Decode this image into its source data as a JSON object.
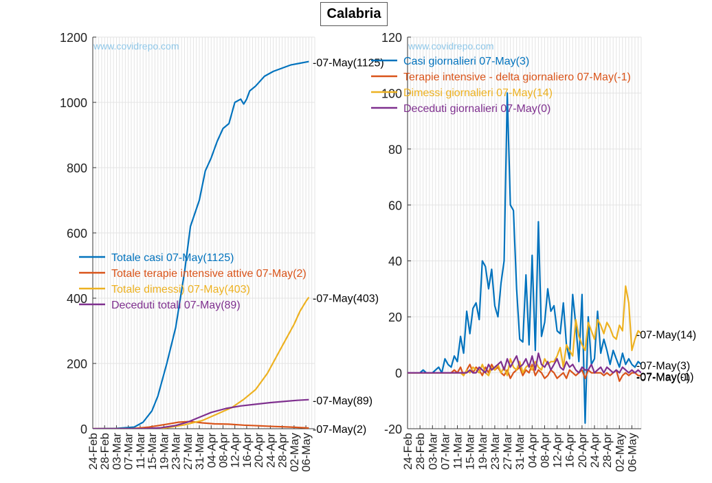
{
  "title": "Calabria",
  "watermark": "www.covidrepo.com",
  "colors": {
    "blue": "#0072BD",
    "orange": "#D95319",
    "yellow": "#EDB120",
    "purple": "#7E2F8E",
    "watermark": "#8fc7e8",
    "grid": "#e3e3e3"
  },
  "chart_data": [
    {
      "type": "line",
      "panel": "left",
      "ylim": [
        0,
        1200
      ],
      "yticks": [
        0,
        200,
        400,
        600,
        800,
        1000,
        1200
      ],
      "xlim": [
        "2020-02-24",
        "2020-05-09"
      ],
      "xtick_labels": [
        "24-Feb",
        "28-Feb",
        "03-Mar",
        "07-Mar",
        "11-Mar",
        "15-Mar",
        "19-Mar",
        "23-Mar",
        "27-Mar",
        "31-Mar",
        "04-Apr",
        "08-Apr",
        "12-Apr",
        "16-Apr",
        "20-Apr",
        "24-Apr",
        "28-Apr",
        "02-May",
        "06-May"
      ],
      "legend_position": "center-left",
      "series": [
        {
          "name": "Totale casi 07-May(1125)",
          "end_label": "-07-May(1125)",
          "color": "#0072BD",
          "x": [
            "2020-02-24",
            "2020-03-03",
            "2020-03-09",
            "2020-03-12",
            "2020-03-15",
            "2020-03-17",
            "2020-03-20",
            "2020-03-23",
            "2020-03-26",
            "2020-03-28",
            "2020-03-31",
            "2020-04-02",
            "2020-04-04",
            "2020-04-06",
            "2020-04-08",
            "2020-04-10",
            "2020-04-12",
            "2020-04-14",
            "2020-04-15",
            "2020-04-16",
            "2020-04-17",
            "2020-04-19",
            "2020-04-22",
            "2020-04-25",
            "2020-04-28",
            "2020-05-01",
            "2020-05-04",
            "2020-05-07"
          ],
          "y": [
            0,
            1,
            5,
            20,
            55,
            100,
            200,
            310,
            480,
            620,
            700,
            790,
            830,
            880,
            920,
            935,
            1000,
            1010,
            995,
            1010,
            1035,
            1050,
            1080,
            1095,
            1105,
            1115,
            1120,
            1125
          ]
        },
        {
          "name": "Totale terapie intensive attive 07-May(2)",
          "end_label": "-07-May(2)",
          "color": "#D95319",
          "x": [
            "2020-02-24",
            "2020-03-08",
            "2020-03-14",
            "2020-03-20",
            "2020-03-24",
            "2020-03-28",
            "2020-04-01",
            "2020-04-05",
            "2020-04-10",
            "2020-04-15",
            "2020-04-20",
            "2020-04-25",
            "2020-05-01",
            "2020-05-07"
          ],
          "y": [
            0,
            0,
            5,
            14,
            20,
            22,
            18,
            15,
            14,
            11,
            9,
            7,
            5,
            2
          ]
        },
        {
          "name": "Totale dimessi) 07-May(403)",
          "end_label": "-07-May(403)",
          "color": "#EDB120",
          "x": [
            "2020-02-24",
            "2020-03-14",
            "2020-03-20",
            "2020-03-26",
            "2020-04-01",
            "2020-04-06",
            "2020-04-11",
            "2020-04-15",
            "2020-04-19",
            "2020-04-23",
            "2020-04-26",
            "2020-04-29",
            "2020-05-02",
            "2020-05-04",
            "2020-05-06",
            "2020-05-07"
          ],
          "y": [
            0,
            0,
            3,
            12,
            25,
            45,
            65,
            90,
            120,
            170,
            220,
            270,
            320,
            360,
            390,
            403
          ]
        },
        {
          "name": "Deceduti totali 07-May(89)",
          "end_label": "-07-May(89)",
          "color": "#7E2F8E",
          "x": [
            "2020-02-24",
            "2020-03-12",
            "2020-03-18",
            "2020-03-23",
            "2020-03-27",
            "2020-03-31",
            "2020-04-04",
            "2020-04-09",
            "2020-04-14",
            "2020-04-19",
            "2020-04-24",
            "2020-04-29",
            "2020-05-03",
            "2020-05-07"
          ],
          "y": [
            0,
            0,
            3,
            10,
            20,
            35,
            50,
            62,
            70,
            75,
            80,
            84,
            87,
            89
          ]
        }
      ]
    },
    {
      "type": "line",
      "panel": "right",
      "ylim": [
        -20,
        120
      ],
      "yticks": [
        -20,
        0,
        20,
        40,
        60,
        80,
        100,
        120
      ],
      "xlim": [
        "2020-02-24",
        "2020-05-09"
      ],
      "xtick_labels": [
        "24-Feb",
        "28-Feb",
        "03-Mar",
        "07-Mar",
        "11-Mar",
        "15-Mar",
        "19-Mar",
        "23-Mar",
        "27-Mar",
        "31-Mar",
        "04-Apr",
        "08-Apr",
        "12-Apr",
        "16-Apr",
        "20-Apr",
        "24-Apr",
        "28-Apr",
        "02-May",
        "06-May"
      ],
      "legend_position": "top-right",
      "series": [
        {
          "name": "Casi giornalieri 07-May(3)",
          "end_label": "-07-May(3)",
          "color": "#0072BD",
          "y": [
            0,
            0,
            0,
            0,
            0,
            1,
            0,
            0,
            0,
            1,
            2,
            0,
            5,
            3,
            2,
            6,
            4,
            13,
            7,
            22,
            14,
            23,
            25,
            19,
            40,
            38,
            30,
            37,
            24,
            20,
            32,
            40,
            100,
            60,
            58,
            30,
            12,
            11,
            35,
            10,
            42,
            8,
            54,
            13,
            18,
            30,
            22,
            24,
            15,
            14,
            25,
            10,
            5,
            28,
            17,
            4,
            28,
            -18,
            20,
            3,
            5,
            22,
            7,
            12,
            8,
            3,
            8,
            5,
            2,
            7,
            3,
            5,
            3,
            2,
            4,
            3
          ]
        },
        {
          "name": "Terapie intensive - delta giornaliero 07-May(-1)",
          "end_label": "-07-May(-1)",
          "color": "#D95319",
          "y": [
            0,
            0,
            0,
            0,
            0,
            0,
            0,
            0,
            0,
            0,
            0,
            0,
            0,
            0,
            0,
            1,
            0,
            2,
            -1,
            1,
            3,
            0,
            2,
            1,
            -1,
            2,
            0,
            3,
            1,
            2,
            0,
            -1,
            1,
            -2,
            0,
            1,
            2,
            -1,
            1,
            0,
            3,
            -1,
            1,
            0,
            -2,
            -1,
            1,
            0,
            -2,
            -1,
            0,
            -2,
            1,
            0,
            -1,
            0,
            1,
            -2,
            1,
            0,
            0,
            0,
            0,
            -1,
            0,
            -1,
            0,
            1,
            -3,
            -1,
            0,
            -1,
            0,
            0,
            -1,
            -1
          ]
        },
        {
          "name": "Dimessi giornalieri 07-May(14)",
          "end_label": "-07-May(14)",
          "color": "#EDB120",
          "y": [
            0,
            0,
            0,
            0,
            0,
            0,
            0,
            0,
            0,
            0,
            0,
            0,
            0,
            0,
            0,
            0,
            0,
            0,
            -1,
            1,
            0,
            2,
            1,
            0,
            3,
            0,
            -1,
            2,
            1,
            3,
            0,
            2,
            -1,
            5,
            2,
            1,
            4,
            0,
            2,
            3,
            1,
            4,
            2,
            1,
            5,
            3,
            4,
            4,
            6,
            9,
            2,
            10,
            8,
            6,
            19,
            13,
            10,
            8,
            18,
            15,
            12,
            19,
            17,
            14,
            18,
            16,
            13,
            12,
            17,
            15,
            31,
            25,
            8,
            12,
            15,
            14
          ]
        },
        {
          "name": "Deceduti giornalieri 07-May(0)",
          "end_label": "-07-May(0)",
          "color": "#7E2F8E",
          "y": [
            0,
            0,
            0,
            0,
            0,
            0,
            0,
            0,
            0,
            0,
            0,
            0,
            0,
            0,
            0,
            0,
            0,
            0,
            0,
            0,
            1,
            0,
            0,
            2,
            1,
            0,
            3,
            1,
            2,
            3,
            4,
            1,
            5,
            2,
            4,
            6,
            2,
            3,
            5,
            2,
            6,
            1,
            7,
            3,
            2,
            4,
            1,
            3,
            5,
            2,
            1,
            4,
            2,
            3,
            1,
            0,
            2,
            1,
            1,
            3,
            0,
            1,
            2,
            0,
            2,
            1,
            0,
            1,
            0,
            2,
            1,
            0,
            1,
            0,
            1,
            0
          ]
        }
      ]
    }
  ]
}
